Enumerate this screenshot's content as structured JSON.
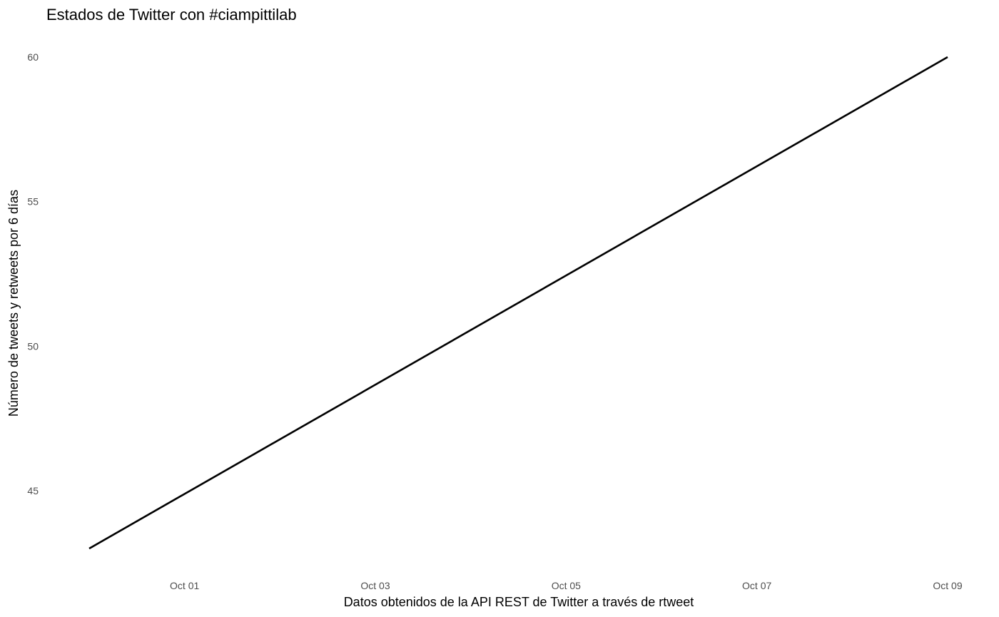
{
  "chart_data": {
    "type": "line",
    "title": "Estados de Twitter con #ciampittilab",
    "xlabel": "Datos obtenidos de la API REST de Twitter a través de rtweet",
    "ylabel": "Número de tweets y retweets por 6 días",
    "x_ticks": [
      {
        "date": "2019-10-01",
        "label": "Oct 01"
      },
      {
        "date": "2019-10-03",
        "label": "Oct 03"
      },
      {
        "date": "2019-10-05",
        "label": "Oct 05"
      },
      {
        "date": "2019-10-07",
        "label": "Oct 07"
      },
      {
        "date": "2019-10-09",
        "label": "Oct 09"
      }
    ],
    "y_ticks": [
      45,
      50,
      55,
      60
    ],
    "xlim": [
      "2019-09-30T00:00",
      "2019-10-09T00:00"
    ],
    "ylim": [
      43,
      60
    ],
    "grid": false,
    "series": [
      {
        "color": "#000000",
        "points": [
          {
            "x": "2019-09-30T00:00",
            "y": 43
          },
          {
            "x": "2019-10-09T00:00",
            "y": 60
          }
        ]
      }
    ]
  }
}
